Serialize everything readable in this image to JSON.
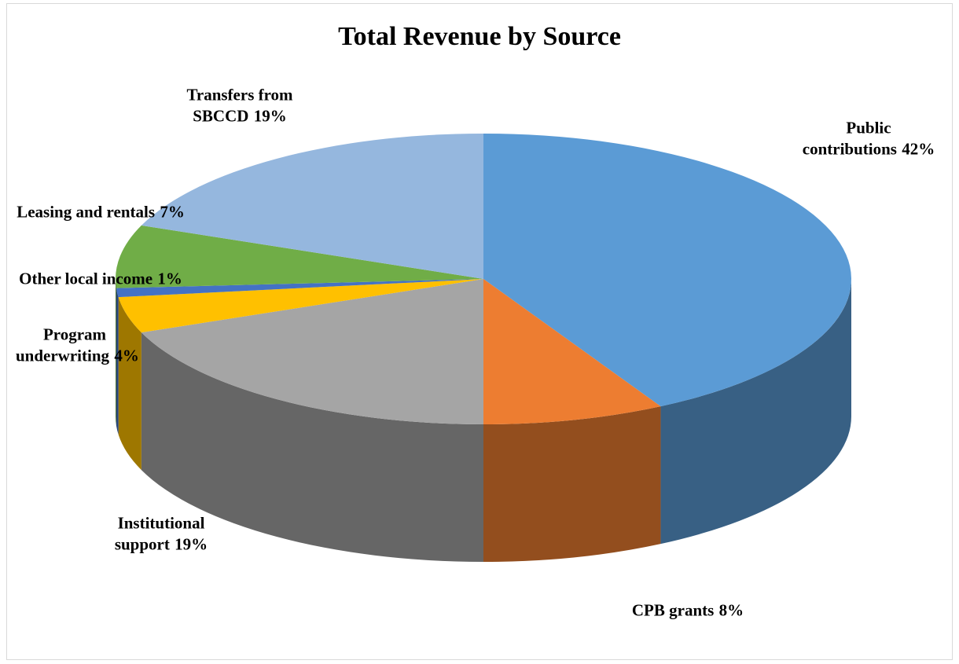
{
  "chart_data": {
    "type": "pie",
    "title": "Total Revenue by Source",
    "categories": [
      "Public contributions",
      "CPB grants",
      "Institutional support",
      "Program underwriting",
      "Other local income",
      "Leasing and rentals",
      "Transfers from SBCCD"
    ],
    "values": [
      42,
      8,
      19,
      4,
      1,
      7,
      19
    ],
    "value_labels": [
      "42%",
      "8%",
      "19%",
      "4%",
      "1%",
      "7%",
      "19%"
    ],
    "colors": [
      "#5b9bd5",
      "#ed7d31",
      "#a5a5a5",
      "#ffc000",
      "#4472c4",
      "#70ad47",
      "#95b7de"
    ]
  }
}
